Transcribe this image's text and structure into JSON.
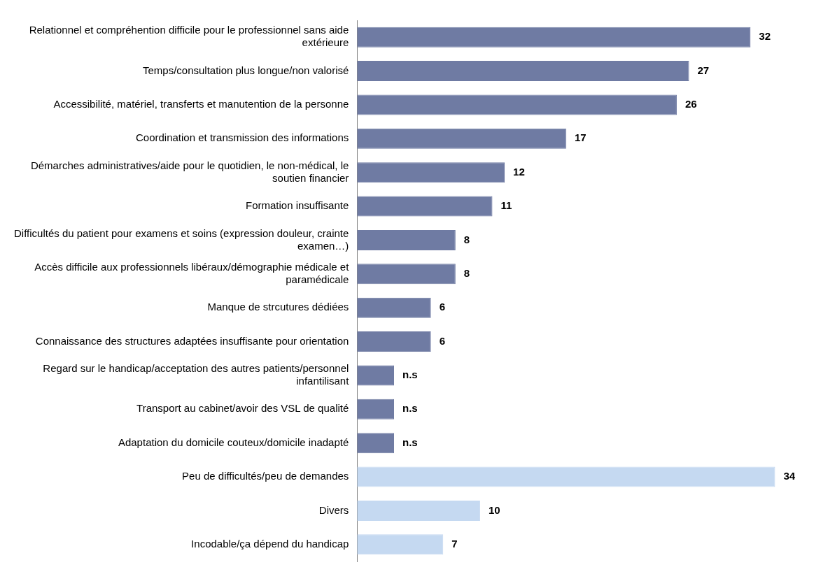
{
  "chart_data": {
    "type": "bar",
    "orientation": "horizontal",
    "categories": [
      "Relationnel et compréhention difficile pour le professionnel sans aide extérieure",
      "Temps/consultation plus longue/non valorisé",
      "Accessibilité, matériel, transferts et manutention de la personne",
      "Coordination et transmission des informations",
      "Démarches administratives/aide pour le quotidien, le non-médical, le soutien financier",
      "Formation insuffisante",
      "Difficultés du patient pour examens et soins (expression douleur, crainte examen…)",
      "Accès difficile aux professionnels libéraux/démographie médicale et paramédicale",
      "Manque de strcutures dédiées",
      "Connaissance des structures adaptées insuffisante pour orientation",
      "Regard sur le handicap/acceptation des autres patients/personnel infantilisant",
      "Transport au cabinet/avoir des VSL de qualité",
      "Adaptation du domicile couteux/domicile inadapté",
      "Peu de difficultés/peu de demandes",
      "Divers",
      "Incodable/ça dépend du handicap"
    ],
    "values": [
      32,
      27,
      26,
      17,
      12,
      11,
      8,
      8,
      6,
      6,
      3,
      3,
      3,
      34,
      10,
      7
    ],
    "value_labels": [
      "32",
      "27",
      "26",
      "17",
      "12",
      "11",
      "8",
      "8",
      "6",
      "6",
      "n.s",
      "n.s",
      "n.s",
      "34",
      "10",
      "7"
    ],
    "colors": [
      "#6f7ba3",
      "#6f7ba3",
      "#6f7ba3",
      "#6f7ba3",
      "#6f7ba3",
      "#6f7ba3",
      "#6f7ba3",
      "#6f7ba3",
      "#6f7ba3",
      "#6f7ba3",
      "#6f7ba3",
      "#6f7ba3",
      "#6f7ba3",
      "#c5d9f1",
      "#c5d9f1",
      "#c5d9f1"
    ],
    "legend": false
  }
}
